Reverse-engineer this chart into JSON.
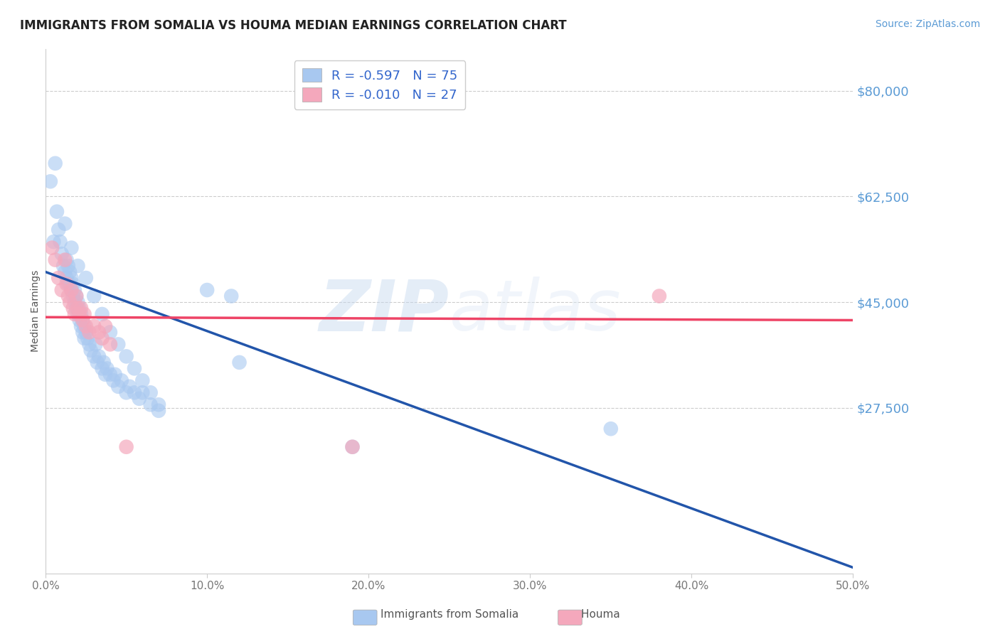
{
  "title": "IMMIGRANTS FROM SOMALIA VS HOUMA MEDIAN EARNINGS CORRELATION CHART",
  "source": "Source: ZipAtlas.com",
  "ylabel": "Median Earnings",
  "xlim": [
    0.0,
    0.5
  ],
  "ylim": [
    0,
    87000
  ],
  "ytick_vals": [
    27500,
    45000,
    62500,
    80000
  ],
  "ytick_labels": [
    "$27,500",
    "$45,000",
    "$62,500",
    "$80,000"
  ],
  "xticks": [
    0.0,
    0.1,
    0.2,
    0.3,
    0.4,
    0.5
  ],
  "xtick_labels": [
    "0.0%",
    "10.0%",
    "20.0%",
    "30.0%",
    "40.0%",
    "50.0%"
  ],
  "grid_color": "#cccccc",
  "background_color": "#ffffff",
  "axis_label_color": "#555555",
  "title_color": "#222222",
  "ytick_color": "#5b9bd5",
  "xtick_color": "#777777",
  "blue_r": -0.597,
  "blue_n": 75,
  "pink_r": -0.01,
  "pink_n": 27,
  "blue_color": "#a8c8f0",
  "pink_color": "#f4a8bc",
  "blue_line_color": "#2255AA",
  "pink_line_color": "#EE4466",
  "legend_blue_label": "Immigrants from Somalia",
  "legend_pink_label": "Houma",
  "watermark_zip": "ZIP",
  "watermark_atlas": "atlas",
  "blue_scatter_x": [
    0.003,
    0.005,
    0.006,
    0.007,
    0.008,
    0.009,
    0.01,
    0.011,
    0.012,
    0.013,
    0.013,
    0.014,
    0.014,
    0.015,
    0.015,
    0.016,
    0.016,
    0.017,
    0.017,
    0.018,
    0.018,
    0.019,
    0.019,
    0.02,
    0.02,
    0.021,
    0.021,
    0.022,
    0.022,
    0.023,
    0.023,
    0.024,
    0.024,
    0.025,
    0.026,
    0.027,
    0.028,
    0.03,
    0.031,
    0.032,
    0.033,
    0.035,
    0.036,
    0.037,
    0.038,
    0.04,
    0.042,
    0.043,
    0.045,
    0.047,
    0.05,
    0.052,
    0.055,
    0.058,
    0.06,
    0.065,
    0.07,
    0.012,
    0.016,
    0.02,
    0.025,
    0.03,
    0.035,
    0.04,
    0.045,
    0.05,
    0.055,
    0.06,
    0.065,
    0.07,
    0.1,
    0.115,
    0.12,
    0.19,
    0.35
  ],
  "blue_scatter_y": [
    65000,
    55000,
    68000,
    60000,
    57000,
    55000,
    53000,
    51000,
    50000,
    52000,
    49000,
    51000,
    48000,
    50000,
    48000,
    47000,
    49000,
    46000,
    48000,
    45000,
    47000,
    46000,
    44000,
    45000,
    43000,
    44000,
    42000,
    43000,
    41000,
    42000,
    40000,
    41000,
    39000,
    40000,
    39000,
    38000,
    37000,
    36000,
    38000,
    35000,
    36000,
    34000,
    35000,
    33000,
    34000,
    33000,
    32000,
    33000,
    31000,
    32000,
    30000,
    31000,
    30000,
    29000,
    30000,
    28000,
    27000,
    58000,
    54000,
    51000,
    49000,
    46000,
    43000,
    40000,
    38000,
    36000,
    34000,
    32000,
    30000,
    28000,
    47000,
    46000,
    35000,
    21000,
    24000
  ],
  "pink_scatter_x": [
    0.004,
    0.006,
    0.008,
    0.01,
    0.012,
    0.013,
    0.014,
    0.015,
    0.016,
    0.017,
    0.018,
    0.019,
    0.02,
    0.021,
    0.022,
    0.023,
    0.024,
    0.025,
    0.027,
    0.03,
    0.033,
    0.035,
    0.037,
    0.04,
    0.05,
    0.38,
    0.19
  ],
  "pink_scatter_y": [
    54000,
    52000,
    49000,
    47000,
    52000,
    48000,
    46000,
    45000,
    47000,
    44000,
    43000,
    46000,
    44000,
    43000,
    44000,
    42000,
    43000,
    41000,
    40000,
    41000,
    40000,
    39000,
    41000,
    38000,
    21000,
    46000,
    21000
  ],
  "blue_line_x0": 0.0,
  "blue_line_x1": 0.5,
  "blue_line_y0": 50000,
  "blue_line_y1": 1000,
  "pink_line_x0": 0.0,
  "pink_line_x1": 0.5,
  "pink_line_y0": 42500,
  "pink_line_y1": 42000
}
